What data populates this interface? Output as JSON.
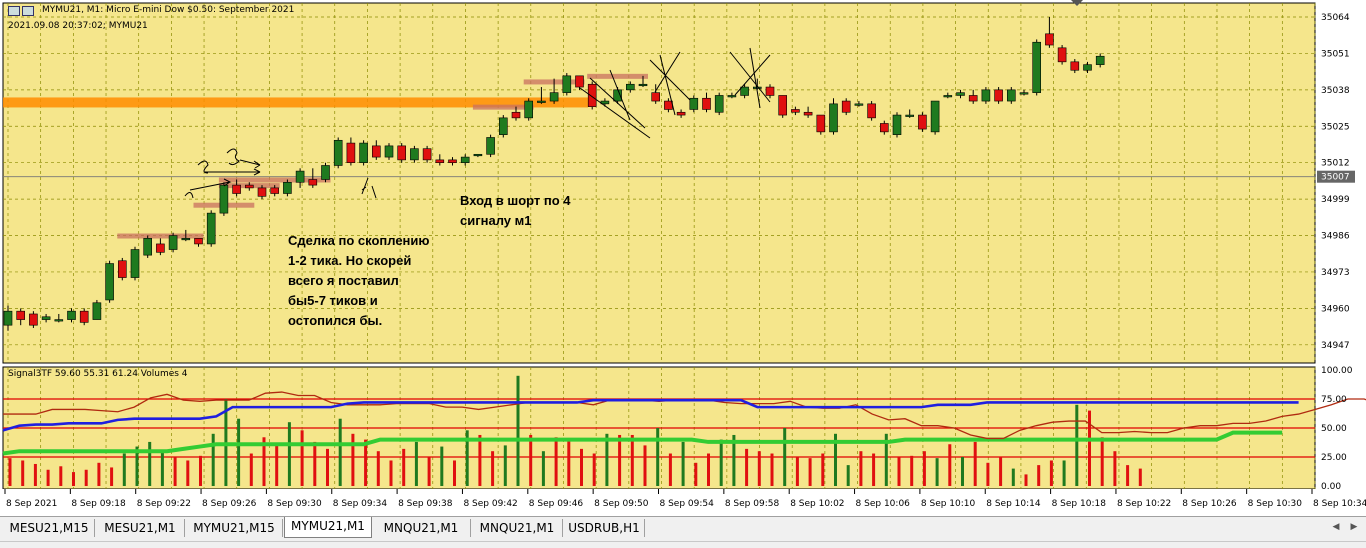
{
  "header": {
    "title": "MYMU21, M1:  Micro E-mini Dow $0.50: September 2021",
    "info": "2021.09.08 20:37:02; MYMU21"
  },
  "indicator_label": "Signal3TF 59.60 55.31 61.24 Volumes 4",
  "annotations": {
    "trade_note": "Сделка по скоплению\n1-2 тика. Но скорей\nвсего я поставил\nбы5-7 тиков и\nостопился бы.",
    "entry_note": "Вход в шорт по 4\nсигналу м1"
  },
  "tabs": [
    {
      "label": "MESU21,M15",
      "active": false
    },
    {
      "label": "MESU21,M1",
      "active": false
    },
    {
      "label": "MYMU21,M15",
      "active": false
    },
    {
      "label": "MYMU21,M1",
      "active": true
    },
    {
      "label": "MNQU21,M1",
      "active": false
    },
    {
      "label": "MNQU21,M1",
      "active": false
    },
    {
      "label": "USDRUB,H1",
      "active": false
    }
  ],
  "colors": {
    "background": "#f5e68c",
    "grid": "#8a8a00",
    "bull": "#1f7a1f",
    "bear": "#e01010",
    "level": "#ff8c00",
    "zone": "#c87060",
    "blue_line": "#1f1fe0",
    "green_line": "#33cc33",
    "darkred_line": "#b02a10",
    "hline": "#e00000"
  },
  "chart_data": [
    {
      "type": "candlestick",
      "price_labels": [
        "35064",
        "35051",
        "35038",
        "35025",
        "35012",
        "34999",
        "34986",
        "34973",
        "34960",
        "34947"
      ],
      "price_ticks": [
        35064,
        35051,
        35038,
        35025,
        35012,
        34999,
        34986,
        34973,
        34960,
        34947
      ],
      "ylim": [
        34940.5,
        35069
      ],
      "current_price": "35007",
      "horizontal_level": 35033.5,
      "time_labels": [
        "8 Sep 2021",
        "8 Sep 09:18",
        "8 Sep 09:22",
        "8 Sep 09:26",
        "8 Sep 09:30",
        "8 Sep 09:34",
        "8 Sep 09:38",
        "8 Sep 09:42",
        "8 Sep 09:46",
        "8 Sep 09:50",
        "8 Sep 09:54",
        "8 Sep 09:58",
        "8 Sep 10:02",
        "8 Sep 10:06",
        "8 Sep 10:10",
        "8 Sep 10:14",
        "8 Sep 10:18",
        "8 Sep 10:22",
        "8 Sep 10:26",
        "8 Sep 10:30",
        "8 Sep 10:34"
      ],
      "candles": [
        {
          "o": 34954,
          "h": 34961,
          "c": 34959,
          "l": 34952
        },
        {
          "o": 34959,
          "h": 34960,
          "c": 34956,
          "l": 34954
        },
        {
          "o": 34958,
          "h": 34959,
          "c": 34954,
          "l": 34953
        },
        {
          "o": 34956,
          "h": 34958,
          "c": 34957,
          "l": 34955
        },
        {
          "o": 34956,
          "h": 34958,
          "c": 34956,
          "l": 34955
        },
        {
          "o": 34956,
          "h": 34960,
          "c": 34959,
          "l": 34955
        },
        {
          "o": 34959,
          "h": 34960,
          "c": 34955,
          "l": 34954
        },
        {
          "o": 34956,
          "h": 34963,
          "c": 34962,
          "l": 34956
        },
        {
          "o": 34963,
          "h": 34977,
          "c": 34976,
          "l": 34962
        },
        {
          "o": 34977,
          "h": 34978,
          "c": 34971,
          "l": 34970
        },
        {
          "o": 34971,
          "h": 34982,
          "c": 34981,
          "l": 34970
        },
        {
          "o": 34979,
          "h": 34986,
          "c": 34985,
          "l": 34978
        },
        {
          "o": 34983,
          "h": 34985,
          "c": 34980,
          "l": 34979
        },
        {
          "o": 34981,
          "h": 34987,
          "c": 34986,
          "l": 34980
        },
        {
          "o": 34985,
          "h": 34988,
          "c": 34985,
          "l": 34984
        },
        {
          "o": 34985,
          "h": 34985,
          "c": 34983,
          "l": 34982
        },
        {
          "o": 34983,
          "h": 34995,
          "c": 34994,
          "l": 34982
        },
        {
          "o": 34994,
          "h": 35005,
          "c": 35004,
          "l": 34993
        },
        {
          "o": 35004,
          "h": 35006,
          "c": 35001,
          "l": 35000
        },
        {
          "o": 35004,
          "h": 35005,
          "c": 35003,
          "l": 35002
        },
        {
          "o": 35003,
          "h": 35004,
          "c": 35000,
          "l": 34999
        },
        {
          "o": 35003,
          "h": 35004,
          "c": 35001,
          "l": 35000
        },
        {
          "o": 35001,
          "h": 35006,
          "c": 35005,
          "l": 35000
        },
        {
          "o": 35005,
          "h": 35010,
          "c": 35009,
          "l": 35003
        },
        {
          "o": 35006,
          "h": 35010,
          "c": 35004,
          "l": 35003
        },
        {
          "o": 35006,
          "h": 35012,
          "c": 35011,
          "l": 35005
        },
        {
          "o": 35011,
          "h": 35021,
          "c": 35020,
          "l": 35010
        },
        {
          "o": 35019,
          "h": 35021,
          "c": 35012,
          "l": 35011
        },
        {
          "o": 35012,
          "h": 35020,
          "c": 35019,
          "l": 35011
        },
        {
          "o": 35018,
          "h": 35020,
          "c": 35014,
          "l": 35013
        },
        {
          "o": 35014,
          "h": 35019,
          "c": 35018,
          "l": 35013
        },
        {
          "o": 35018,
          "h": 35019,
          "c": 35013,
          "l": 35012
        },
        {
          "o": 35013,
          "h": 35018,
          "c": 35017,
          "l": 35012
        },
        {
          "o": 35017,
          "h": 35018,
          "c": 35013,
          "l": 35012
        },
        {
          "o": 35013,
          "h": 35015,
          "c": 35012,
          "l": 35011
        },
        {
          "o": 35013,
          "h": 35014,
          "c": 35012,
          "l": 35011
        },
        {
          "o": 35012,
          "h": 35015,
          "c": 35014,
          "l": 35011
        },
        {
          "o": 35015,
          "h": 35015,
          "c": 35015,
          "l": 35014
        },
        {
          "o": 35015,
          "h": 35022,
          "c": 35021,
          "l": 35014
        },
        {
          "o": 35022,
          "h": 35029,
          "c": 35028,
          "l": 35021
        },
        {
          "o": 35030,
          "h": 35032,
          "c": 35028,
          "l": 35027
        },
        {
          "o": 35028,
          "h": 35035,
          "c": 35034,
          "l": 35027
        },
        {
          "o": 35034,
          "h": 35039,
          "c": 35034,
          "l": 35033
        },
        {
          "o": 35034,
          "h": 35042,
          "c": 35037,
          "l": 35033
        },
        {
          "o": 35037,
          "h": 35044,
          "c": 35043,
          "l": 35036
        },
        {
          "o": 35043,
          "h": 35043,
          "c": 35039,
          "l": 35038
        },
        {
          "o": 35040,
          "h": 35041,
          "c": 35032,
          "l": 35031
        },
        {
          "o": 35033,
          "h": 35035,
          "c": 35034,
          "l": 35032
        },
        {
          "o": 35034,
          "h": 35039,
          "c": 35038,
          "l": 35033
        },
        {
          "o": 35038,
          "h": 35041,
          "c": 35040,
          "l": 35037
        },
        {
          "o": 35040,
          "h": 35043,
          "c": 35040,
          "l": 35039
        },
        {
          "o": 35037,
          "h": 35040,
          "c": 35034,
          "l": 35033
        },
        {
          "o": 35034,
          "h": 35035,
          "c": 35031,
          "l": 35030
        },
        {
          "o": 35030,
          "h": 35031,
          "c": 35029,
          "l": 35028
        },
        {
          "o": 35031,
          "h": 35036,
          "c": 35035,
          "l": 35030
        },
        {
          "o": 35035,
          "h": 35037,
          "c": 35031,
          "l": 35030
        },
        {
          "o": 35030,
          "h": 35037,
          "c": 35036,
          "l": 35029
        },
        {
          "o": 35036,
          "h": 35037,
          "c": 35036,
          "l": 35035
        },
        {
          "o": 35036,
          "h": 35040,
          "c": 35039,
          "l": 35035
        },
        {
          "o": 35039,
          "h": 35042,
          "c": 35039,
          "l": 35038
        },
        {
          "o": 35039,
          "h": 35040,
          "c": 35036,
          "l": 35035
        },
        {
          "o": 35036,
          "h": 35036,
          "c": 35029,
          "l": 35028
        },
        {
          "o": 35031,
          "h": 35032,
          "c": 35030,
          "l": 35029
        },
        {
          "o": 35030,
          "h": 35032,
          "c": 35029,
          "l": 35028
        },
        {
          "o": 35029,
          "h": 35029,
          "c": 35023,
          "l": 35022
        },
        {
          "o": 35023,
          "h": 35035,
          "c": 35033,
          "l": 35022
        },
        {
          "o": 35034,
          "h": 35035,
          "c": 35030,
          "l": 35029
        },
        {
          "o": 35033,
          "h": 35034,
          "c": 35033,
          "l": 35032
        },
        {
          "o": 35033,
          "h": 35034,
          "c": 35028,
          "l": 35027
        },
        {
          "o": 35026,
          "h": 35027,
          "c": 35023,
          "l": 35022
        },
        {
          "o": 35022,
          "h": 35030,
          "c": 35029,
          "l": 35021
        },
        {
          "o": 35029,
          "h": 35031,
          "c": 35029,
          "l": 35028
        },
        {
          "o": 35029,
          "h": 35030,
          "c": 35024,
          "l": 35023
        },
        {
          "o": 35023,
          "h": 35034,
          "c": 35034,
          "l": 35022
        },
        {
          "o": 35036,
          "h": 35037,
          "c": 35036,
          "l": 35035
        },
        {
          "o": 35036,
          "h": 35038,
          "c": 35037,
          "l": 35035
        },
        {
          "o": 35036,
          "h": 35038,
          "c": 35034,
          "l": 35033
        },
        {
          "o": 35034,
          "h": 35039,
          "c": 35038,
          "l": 35033
        },
        {
          "o": 35038,
          "h": 35039,
          "c": 35034,
          "l": 35033
        },
        {
          "o": 35034,
          "h": 35039,
          "c": 35038,
          "l": 35033
        },
        {
          "o": 35037,
          "h": 35038,
          "c": 35037,
          "l": 35036
        },
        {
          "o": 35037,
          "h": 35056,
          "c": 35055,
          "l": 35036
        },
        {
          "o": 35058,
          "h": 35064,
          "c": 35054,
          "l": 35053
        },
        {
          "o": 35053,
          "h": 35054,
          "c": 35048,
          "l": 35047
        },
        {
          "o": 35048,
          "h": 35049,
          "c": 35045,
          "l": 35044
        },
        {
          "o": 35045,
          "h": 35048,
          "c": 35047,
          "l": 35044
        },
        {
          "o": 35047,
          "h": 35051,
          "c": 35050,
          "l": 35046
        }
      ],
      "zones": [
        {
          "from": 9,
          "to": 15,
          "price": 34986
        },
        {
          "from": 15,
          "to": 19,
          "price": 34997
        },
        {
          "from": 17,
          "to": 21,
          "price": 35004
        },
        {
          "from": 17,
          "to": 25,
          "price": 35006
        },
        {
          "from": 37,
          "to": 41,
          "price": 35032
        },
        {
          "from": 41,
          "to": 45,
          "price": 35041
        },
        {
          "from": 46,
          "to": 50,
          "price": 35043
        }
      ]
    },
    {
      "type": "bar",
      "name": "Signal3TF",
      "price_labels": [
        "100.00",
        "75.00",
        "50.00",
        "25.00",
        "0.00"
      ],
      "ylim": [
        0,
        100
      ],
      "hlines": [
        75,
        50,
        25
      ],
      "volumes": [
        24,
        22,
        19,
        14,
        17,
        12,
        14,
        20,
        16,
        28,
        34,
        38,
        30,
        25,
        22,
        26,
        45,
        75,
        58,
        28,
        42,
        35,
        55,
        48,
        38,
        32,
        58,
        45,
        40,
        30,
        22,
        32,
        38,
        25,
        34,
        22,
        48,
        44,
        30,
        35,
        95,
        44,
        30,
        42,
        40,
        32,
        28,
        45,
        44,
        44,
        35,
        50,
        28,
        38,
        20,
        28,
        40,
        44,
        32,
        30,
        28,
        50,
        25,
        24,
        28,
        45,
        18,
        30,
        28,
        45,
        25,
        26,
        30,
        24,
        36,
        25,
        38,
        20,
        25,
        15,
        10,
        18,
        22,
        22,
        70,
        65,
        42,
        30,
        18,
        15
      ],
      "vol_colors": [
        "r",
        "r",
        "r",
        "r",
        "r",
        "r",
        "r",
        "r",
        "r",
        "g",
        "g",
        "g",
        "g",
        "r",
        "r",
        "r",
        "g",
        "g",
        "g",
        "r",
        "r",
        "r",
        "g",
        "r",
        "r",
        "r",
        "g",
        "r",
        "r",
        "r",
        "r",
        "r",
        "g",
        "r",
        "g",
        "r",
        "g",
        "r",
        "r",
        "g",
        "g",
        "r",
        "g",
        "r",
        "r",
        "r",
        "r",
        "g",
        "r",
        "r",
        "r",
        "g",
        "r",
        "g",
        "r",
        "r",
        "g",
        "g",
        "r",
        "r",
        "r",
        "g",
        "r",
        "r",
        "r",
        "g",
        "g",
        "r",
        "r",
        "g",
        "r",
        "r",
        "r",
        "g",
        "r",
        "g",
        "r",
        "r",
        "r",
        "g",
        "r",
        "r",
        "r",
        "g",
        "g",
        "r",
        "r",
        "r",
        "r",
        "r"
      ],
      "blue_line": [
        48,
        52,
        53,
        53,
        54,
        54,
        54,
        57,
        58,
        58,
        58,
        58,
        58,
        60,
        68,
        68,
        68,
        68,
        68,
        68,
        68,
        71,
        72,
        72,
        72,
        72,
        72,
        72,
        72,
        72,
        72,
        72,
        72,
        72,
        72,
        72,
        74,
        74,
        74,
        74,
        74,
        74,
        74,
        74,
        74,
        74,
        68,
        68,
        68,
        68,
        68,
        68,
        68,
        68,
        68,
        68,
        68,
        70,
        70,
        70,
        72,
        72,
        72,
        72,
        72,
        72,
        72,
        72,
        72,
        72,
        72,
        72,
        72,
        72,
        72,
        72,
        72,
        72,
        72,
        72
      ],
      "green_line": [
        28,
        30,
        30,
        30,
        30,
        30,
        30,
        30,
        30,
        30,
        30,
        32,
        34,
        36,
        36,
        36,
        36,
        36,
        36,
        36,
        36,
        36,
        36,
        40,
        40,
        40,
        40,
        40,
        40,
        40,
        40,
        40,
        40,
        40,
        40,
        40,
        40,
        40,
        40,
        40,
        40,
        40,
        40,
        38,
        38,
        38,
        38,
        38,
        38,
        38,
        38,
        38,
        38,
        38,
        38,
        40,
        40,
        40,
        40,
        40,
        40,
        40,
        40,
        40,
        40,
        40,
        40,
        40,
        40,
        40,
        40,
        40,
        40,
        40,
        40,
        46,
        46,
        46,
        46
      ],
      "darkred_line": [
        62,
        62,
        62,
        66,
        66,
        66,
        65,
        64,
        68,
        76,
        79,
        74,
        73,
        74,
        74,
        74,
        80,
        81,
        78,
        78,
        72,
        70,
        70,
        70,
        71,
        71,
        71,
        68,
        68,
        66,
        68,
        70,
        72,
        72,
        72,
        72,
        70,
        74,
        74,
        74,
        73,
        74,
        74,
        74,
        72,
        71,
        71,
        71,
        73,
        68,
        67,
        67,
        70,
        62,
        57,
        58,
        52,
        52,
        50,
        44,
        41,
        41,
        48,
        52,
        55,
        56,
        56,
        46,
        46,
        47,
        46,
        46,
        50,
        52,
        52,
        54,
        54,
        56,
        60,
        62,
        66,
        70,
        75,
        75,
        70,
        68,
        68,
        67,
        67
      ]
    }
  ]
}
